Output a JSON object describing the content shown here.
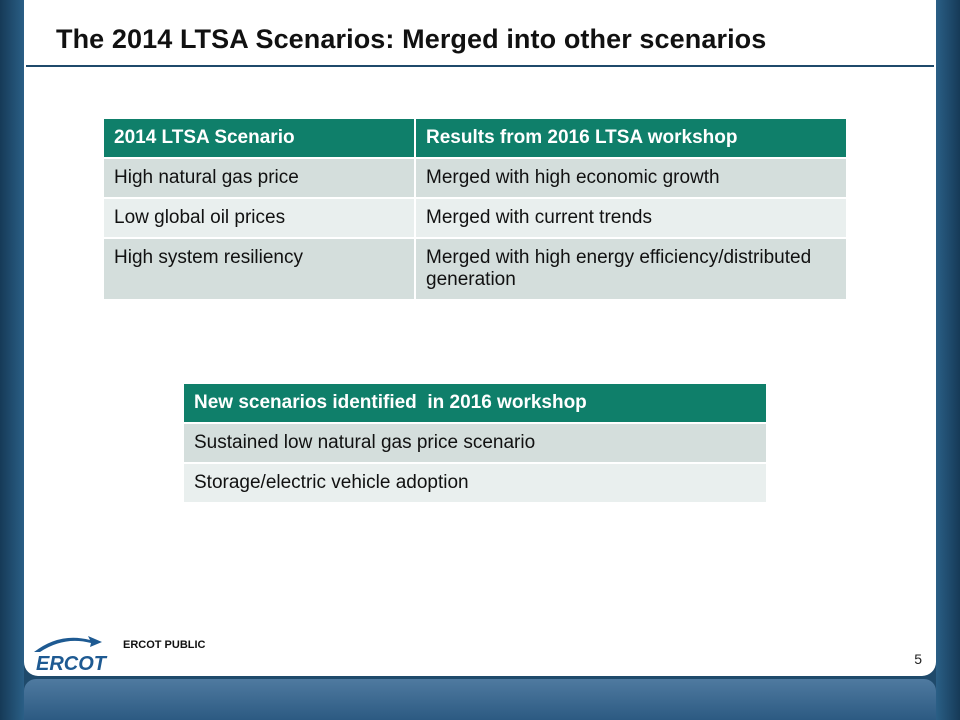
{
  "slide": {
    "title": "The 2014 LTSA Scenarios: Merged into other scenarios",
    "page_number": "5",
    "footer_label": "ERCOT PUBLIC",
    "logo_text": "ERCOT"
  },
  "table1": {
    "headers": [
      "2014 LTSA Scenario",
      "Results from 2016 LTSA workshop"
    ],
    "rows": [
      [
        "High natural gas price",
        "Merged with high economic growth"
      ],
      [
        "Low global oil prices",
        "Merged with current trends"
      ],
      [
        "High system resiliency",
        "Merged with high energy efficiency/distributed generation"
      ]
    ]
  },
  "table2": {
    "header": "New scenarios identified  in 2016 workshop",
    "rows": [
      "Sustained low natural gas price scenario",
      "Storage/electric vehicle adoption"
    ]
  },
  "colors": {
    "header_bg": "#0f7f6a",
    "row_dark": "#d4dedc",
    "row_light": "#e9efee",
    "frame": "#1f4a6b",
    "logo_blue": "#1e5a92"
  }
}
